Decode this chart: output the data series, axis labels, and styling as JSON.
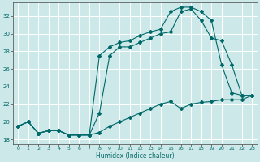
{
  "bg_color": "#cce8e8",
  "grid_color": "#ffffff",
  "line_color": "#006868",
  "xlabel": "Humidex (Indice chaleur)",
  "xlim": [
    -0.5,
    23.5
  ],
  "ylim": [
    17.5,
    33.5
  ],
  "yticks": [
    18,
    20,
    22,
    24,
    26,
    28,
    30,
    32
  ],
  "xticks": [
    0,
    1,
    2,
    3,
    4,
    5,
    6,
    7,
    8,
    9,
    10,
    11,
    12,
    13,
    14,
    15,
    16,
    17,
    18,
    19,
    20,
    21,
    22,
    23
  ],
  "line1_x": [
    0,
    1,
    2,
    3,
    4,
    5,
    6,
    7,
    8,
    9,
    10,
    11,
    12,
    13,
    14,
    15,
    16,
    17,
    18,
    19,
    20,
    21,
    22,
    23
  ],
  "line1_y": [
    19.5,
    20.0,
    18.7,
    19.0,
    19.0,
    18.5,
    18.5,
    18.5,
    18.8,
    19.5,
    20.0,
    20.5,
    21.0,
    21.5,
    22.0,
    22.3,
    21.5,
    22.0,
    22.2,
    22.3,
    22.5,
    22.5,
    22.5,
    23.0
  ],
  "line2_x": [
    0,
    1,
    2,
    3,
    4,
    5,
    6,
    7,
    8,
    9,
    10,
    11,
    12,
    13,
    14,
    15,
    16,
    17,
    18,
    19,
    20,
    21,
    22,
    23
  ],
  "line2_y": [
    19.5,
    20.0,
    18.7,
    19.0,
    19.0,
    18.5,
    18.5,
    18.5,
    21.0,
    27.5,
    28.5,
    28.5,
    29.0,
    29.5,
    30.0,
    30.2,
    32.5,
    32.8,
    31.5,
    29.5,
    29.2,
    26.5,
    23.0,
    23.0
  ],
  "line3_x": [
    0,
    1,
    2,
    3,
    4,
    5,
    6,
    7,
    8,
    9,
    10,
    11,
    12,
    13,
    14,
    15,
    16,
    17,
    18,
    19,
    20,
    21,
    22,
    23
  ],
  "line3_y": [
    19.5,
    20.0,
    18.7,
    19.0,
    19.0,
    18.5,
    18.5,
    18.5,
    27.5,
    28.5,
    29.0,
    29.2,
    29.8,
    30.2,
    30.5,
    32.5,
    33.0,
    33.0,
    32.5,
    31.5,
    26.5,
    23.3,
    23.0,
    23.0
  ]
}
